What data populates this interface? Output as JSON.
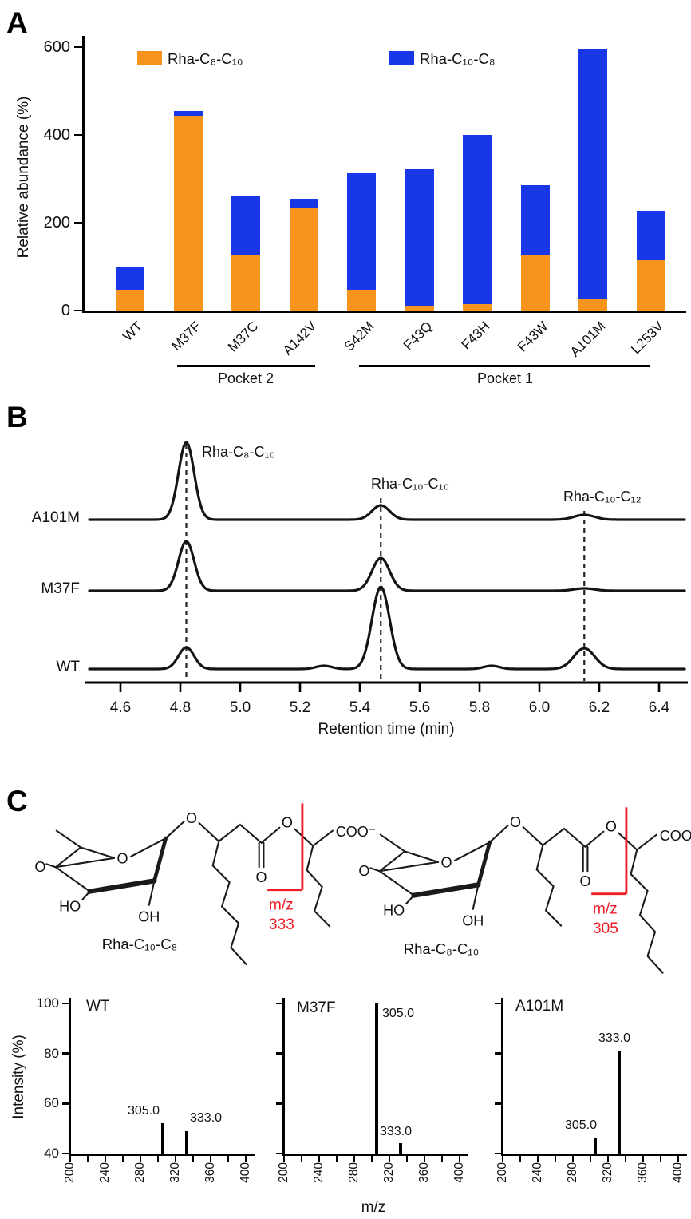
{
  "panels": {
    "a_label": "A",
    "b_label": "B",
    "c_label": "C"
  },
  "colors": {
    "orange": "#F7941D",
    "blue": "#1838E8",
    "red": "#EE1C25",
    "trace_black": "#141414"
  },
  "chart_data": [
    {
      "id": "mutant_relative_abundance",
      "type": "bar",
      "stacked": true,
      "ylabel": "Relative abundance (%)",
      "ylim": [
        0,
        620
      ],
      "yticks": [
        0,
        200,
        400,
        600
      ],
      "grid": false,
      "legend_position": "top-inside",
      "categories": [
        "WT",
        "M37F",
        "M37C",
        "A142V",
        "S42M",
        "F43Q",
        "F43H",
        "F43W",
        "A101M",
        "L253V"
      ],
      "series": [
        {
          "name": "Rha-C₈-C₁₀",
          "color": "#F7941D",
          "values": [
            48,
            443,
            127,
            235,
            48,
            11,
            15,
            125,
            27,
            114
          ]
        },
        {
          "name": "Rha-C₁₀-C₈",
          "color": "#1838E8",
          "values": [
            52,
            12,
            133,
            20,
            265,
            310,
            385,
            160,
            570,
            114
          ]
        }
      ],
      "group_brackets": [
        {
          "label": "Pocket 2",
          "categories": [
            "M37F",
            "M37C",
            "A142V"
          ]
        },
        {
          "label": "Pocket 1",
          "categories": [
            "S42M",
            "F43Q",
            "F43H",
            "F43W",
            "A101M",
            "L253V"
          ]
        }
      ]
    },
    {
      "id": "chromatograms",
      "type": "line",
      "xlabel": "Retention time (min)",
      "xlim": [
        4.5,
        6.5
      ],
      "xticks": [
        4.6,
        4.8,
        5.0,
        5.2,
        5.4,
        5.6,
        5.8,
        6.0,
        6.2,
        6.4
      ],
      "traces": [
        {
          "name": "A101M",
          "peaks": [
            {
              "rt": 4.82,
              "intensity": 97
            },
            {
              "rt": 5.47,
              "intensity": 18
            },
            {
              "rt": 6.15,
              "intensity": 6
            }
          ]
        },
        {
          "name": "M37F",
          "peaks": [
            {
              "rt": 4.82,
              "intensity": 62
            },
            {
              "rt": 5.47,
              "intensity": 41
            },
            {
              "rt": 6.15,
              "intensity": 3
            }
          ]
        },
        {
          "name": "WT",
          "peaks": [
            {
              "rt": 4.82,
              "intensity": 27
            },
            {
              "rt": 5.28,
              "intensity": 4
            },
            {
              "rt": 5.47,
              "intensity": 103
            },
            {
              "rt": 5.84,
              "intensity": 4
            },
            {
              "rt": 6.15,
              "intensity": 26
            }
          ]
        }
      ],
      "dashed_guides_rt": [
        4.82,
        5.47,
        6.15
      ],
      "peak_annotations": [
        {
          "label": "Rha-C₈-C₁₀",
          "rt": 4.82
        },
        {
          "label": "Rha-C₁₀-C₁₀",
          "rt": 5.47
        },
        {
          "label": "Rha-C₁₀-C₁₂",
          "rt": 6.15
        }
      ]
    },
    {
      "id": "ms_spectra",
      "type": "bar",
      "subtype": "impulse-mass-spectrum",
      "xlabel": "m/z",
      "ylabel": "Intensity (%)",
      "xlim": [
        200,
        410
      ],
      "ylim": [
        40,
        100
      ],
      "yticks": [
        40,
        60,
        80,
        100
      ],
      "xticks_major": [
        200,
        240,
        280,
        320,
        360,
        400
      ],
      "xtick_minor_step": 20,
      "panels": [
        {
          "name": "WT",
          "peaks": [
            {
              "mz": 305.0,
              "intensity": 52,
              "label": "305.0"
            },
            {
              "mz": 333.0,
              "intensity": 49,
              "label": "333.0"
            }
          ]
        },
        {
          "name": "M37F",
          "peaks": [
            {
              "mz": 305.0,
              "intensity": 100,
              "label": "305.0"
            },
            {
              "mz": 333.0,
              "intensity": 44,
              "label": "333.0"
            }
          ]
        },
        {
          "name": "A101M",
          "peaks": [
            {
              "mz": 305.0,
              "intensity": 46,
              "label": "305.0"
            },
            {
              "mz": 333.0,
              "intensity": 81,
              "label": "333.0"
            }
          ]
        }
      ]
    }
  ],
  "structures": [
    {
      "name": "Rha-C₁₀-C₈",
      "fragment_label": "m/z",
      "fragment_mz": "333",
      "hydroxyl_1": "HO",
      "hydroxyl_2": "HO",
      "hydroxyl_3": "OH",
      "ring_oxygen": "O",
      "glycosidic_oxygen": "O",
      "carbonyl_oxygen": "O",
      "ester_oxygen": "O",
      "carboxylate": "COO⁻"
    },
    {
      "name": "Rha-C₈-C₁₀",
      "fragment_label": "m/z",
      "fragment_mz": "305",
      "hydroxyl_1": "HO",
      "hydroxyl_2": "HO",
      "hydroxyl_3": "OH",
      "ring_oxygen": "O",
      "glycosidic_oxygen": "O",
      "carbonyl_oxygen": "O",
      "ester_oxygen": "O",
      "carboxylate": "COO⁻"
    }
  ]
}
